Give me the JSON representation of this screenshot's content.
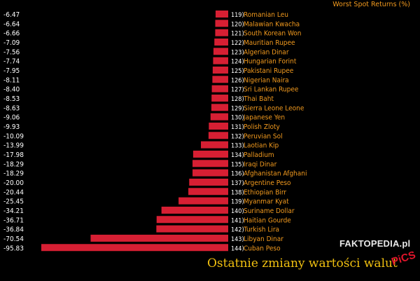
{
  "header": {
    "title": "Worst Spot Returns (%)"
  },
  "watermark": {
    "text": "FAKTOPEDIA.pl"
  },
  "caption": {
    "text": "Ostatnie zmiany wartości walut"
  },
  "badge": {
    "text": "PiCS"
  },
  "colors": {
    "bar": "#d71f33",
    "label": "#f29a1e",
    "value": "#ffffff",
    "background": "#000000"
  },
  "chart_data": {
    "type": "bar",
    "orientation": "horizontal",
    "title": "Worst Spot Returns (%)",
    "xlabel": "",
    "ylabel": "",
    "grid": false,
    "xlim": [
      -95.83,
      0
    ],
    "rows": [
      {
        "value": -6.47,
        "value_label": "-6.47",
        "rank": "119)",
        "currency": "Romanian Leu"
      },
      {
        "value": -6.64,
        "value_label": "-6.64",
        "rank": "120)",
        "currency": "Malawian Kwacha"
      },
      {
        "value": -6.66,
        "value_label": "-6.66",
        "rank": "121)",
        "currency": "South Korean Won"
      },
      {
        "value": -7.09,
        "value_label": "-7.09",
        "rank": "122)",
        "currency": "Mauritian Rupee"
      },
      {
        "value": -7.56,
        "value_label": "-7.56",
        "rank": "123)",
        "currency": "Algerian Dinar"
      },
      {
        "value": -7.74,
        "value_label": "-7.74",
        "rank": "124)",
        "currency": "Hungarian Forint"
      },
      {
        "value": -7.95,
        "value_label": "-7.95",
        "rank": "125)",
        "currency": "Pakistani Rupee"
      },
      {
        "value": -8.11,
        "value_label": "-8.11",
        "rank": "126)",
        "currency": "Nigerian Naira"
      },
      {
        "value": -8.4,
        "value_label": "-8.40",
        "rank": "127)",
        "currency": "Sri Lankan Rupee"
      },
      {
        "value": -8.53,
        "value_label": "-8.53",
        "rank": "128)",
        "currency": "Thai Baht"
      },
      {
        "value": -8.63,
        "value_label": "-8.63",
        "rank": "129)",
        "currency": "Sierra Leone Leone"
      },
      {
        "value": -9.06,
        "value_label": "-9.06",
        "rank": "130)",
        "currency": "Japanese Yen"
      },
      {
        "value": -9.93,
        "value_label": "-9.93",
        "rank": "131)",
        "currency": "Polish Zloty"
      },
      {
        "value": -10.09,
        "value_label": "-10.09",
        "rank": "132)",
        "currency": "Peruvian Sol"
      },
      {
        "value": -13.99,
        "value_label": "-13.99",
        "rank": "133)",
        "currency": "Laotian Kip"
      },
      {
        "value": -17.98,
        "value_label": "-17.98",
        "rank": "134)",
        "currency": "Palladium"
      },
      {
        "value": -18.29,
        "value_label": "-18.29",
        "rank": "135)",
        "currency": "Iraqi Dinar"
      },
      {
        "value": -18.29,
        "value_label": "-18.29",
        "rank": "136)",
        "currency": "Afghanistan Afghani"
      },
      {
        "value": -20.0,
        "value_label": "-20.00",
        "rank": "137)",
        "currency": "Argentine Peso"
      },
      {
        "value": -20.44,
        "value_label": "-20.44",
        "rank": "138)",
        "currency": "Ethiopian Birr"
      },
      {
        "value": -25.45,
        "value_label": "-25.45",
        "rank": "139)",
        "currency": "Myanmar Kyat"
      },
      {
        "value": -34.21,
        "value_label": "-34.21",
        "rank": "140)",
        "currency": "Suriname Dollar"
      },
      {
        "value": -36.71,
        "value_label": "-36.71",
        "rank": "141)",
        "currency": "Haitian Gourde"
      },
      {
        "value": -36.84,
        "value_label": "-36.84",
        "rank": "142)",
        "currency": "Turkish Lira"
      },
      {
        "value": -70.54,
        "value_label": "-70.54",
        "rank": "143)",
        "currency": "Libyan Dinar"
      },
      {
        "value": -95.83,
        "value_label": "-95.83",
        "rank": "144)",
        "currency": "Cuban Peso"
      }
    ]
  }
}
